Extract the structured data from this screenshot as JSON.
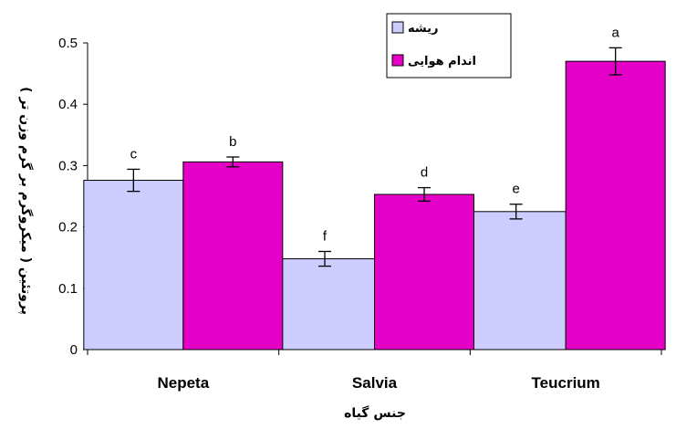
{
  "chart_data": {
    "type": "bar",
    "categories": [
      "Nepeta",
      "Salvia",
      "Teucrium"
    ],
    "series": [
      {
        "name": "ریشه",
        "color": "#ccccff",
        "values": [
          0.276,
          0.148,
          0.225
        ],
        "errors": [
          0.018,
          0.012,
          0.012
        ],
        "labels": [
          "c",
          "f",
          "e"
        ]
      },
      {
        "name": "اندام هوایی",
        "color": "#e500c8",
        "values": [
          0.306,
          0.253,
          0.47
        ],
        "errors": [
          0.008,
          0.011,
          0.022
        ],
        "labels": [
          "b",
          "d",
          "a"
        ]
      }
    ],
    "ylabel": "پروتئین ( میکروگرم بر گرم وزن تر )",
    "xlabel": "جنس گیاه",
    "ylim": [
      0,
      0.5
    ],
    "yticks": [
      "0",
      "0.1",
      "0.2",
      "0.3",
      "0.4",
      "0.5"
    ],
    "grid": false,
    "legend_position": "top-right"
  }
}
